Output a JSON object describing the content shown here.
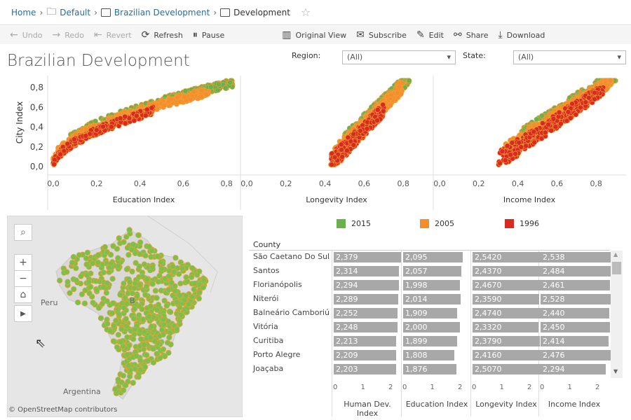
{
  "breadcrumb": {
    "home": "Home",
    "items": [
      "Default",
      "Brazilian Development"
    ],
    "current": "Development"
  },
  "toolbar": {
    "undo": "Undo",
    "redo": "Redo",
    "revert": "Revert",
    "refresh": "Refresh",
    "pause": "Pause",
    "original_view": "Original View",
    "subscribe": "Subscribe",
    "edit": "Edit",
    "share": "Share",
    "download": "Download"
  },
  "dashboard": {
    "title": "Brazilian Development"
  },
  "filters": {
    "region_label": "Region:",
    "region_value": "(All)",
    "state_label": "State:",
    "state_value": "(All)"
  },
  "scatter": {
    "y_label": "City Index",
    "y_ticks": [
      "0,0",
      "0,2",
      "0,4",
      "0,6",
      "0,8"
    ],
    "x_ticks": [
      "0,0",
      "0,2",
      "0,4",
      "0,6",
      "0,8"
    ],
    "panels": [
      "Education Index",
      "Longevity Index",
      "Income Index"
    ]
  },
  "legend": [
    {
      "label": "2015",
      "color": "#6ab04c"
    },
    {
      "label": "2005",
      "color": "#f28e2b"
    },
    {
      "label": "1996",
      "color": "#d62b1e"
    }
  ],
  "map": {
    "labels": [
      "Peru",
      "Argentina",
      "B"
    ],
    "attribution": "© OpenStreetMap contributors",
    "dot_color": "#7cc04a",
    "dot_stroke": "#e8a33a"
  },
  "chart_data": {
    "type": "bar",
    "row_header": "County",
    "categories": [
      "São Caetano Do Sul",
      "Santos",
      "Florianópolis",
      "Niterói",
      "Balneário Camboriú",
      "Vitória",
      "Curitiba",
      "Porto Alegre",
      "Joaçaba"
    ],
    "axis_ticks": [
      "0",
      "1",
      "2"
    ],
    "xlim": [
      0,
      2.6
    ],
    "series": [
      {
        "name": "Human Dev. Index",
        "values": [
          "2,379",
          "2,314",
          "2,294",
          "2,289",
          "2,252",
          "2,248",
          "2,213",
          "2,209",
          "2,203"
        ]
      },
      {
        "name": "Education Index",
        "values": [
          "2,095",
          "2,057",
          "1,998",
          "2,014",
          "1,909",
          "2,000",
          "1,899",
          "1,808",
          "1,876"
        ]
      },
      {
        "name": "Longevity Index",
        "values": [
          "2,5420",
          "2,4370",
          "2,4670",
          "2,3590",
          "2,4740",
          "2,3320",
          "2,3790",
          "2,4160",
          "2,5070"
        ]
      },
      {
        "name": "Income Index",
        "values": [
          "2,538",
          "2,484",
          "2,461",
          "2,528",
          "2,440",
          "2,450",
          "2,414",
          "2,476",
          "2,294"
        ]
      }
    ]
  }
}
